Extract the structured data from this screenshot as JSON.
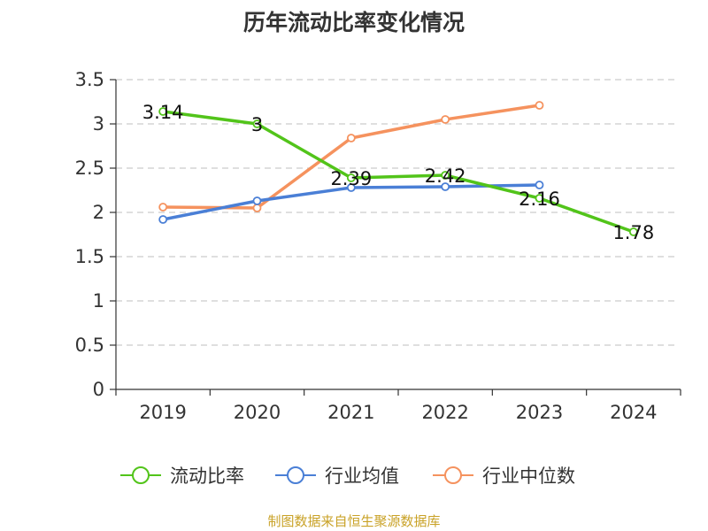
{
  "chart_data": {
    "type": "line",
    "title": "历年流动比率变化情况",
    "categories": [
      "2019",
      "2020",
      "2021",
      "2022",
      "2023",
      "2024"
    ],
    "ylim": [
      0,
      3.5
    ],
    "yticks": [
      0,
      0.5,
      1,
      1.5,
      2,
      2.5,
      3,
      3.5
    ],
    "ytick_labels": [
      "0",
      "0.5",
      "1",
      "1.5",
      "2",
      "2.5",
      "3",
      "3.5"
    ],
    "grid": true,
    "legend_position": "bottom",
    "series": [
      {
        "name": "流动比率",
        "color": "#52c41a",
        "values": [
          3.14,
          3.0,
          2.39,
          2.42,
          2.16,
          1.78
        ],
        "labels": [
          "3.14",
          "3",
          "2.39",
          "2.42",
          "2.16",
          "1.78"
        ]
      },
      {
        "name": "行业均值",
        "color": "#4a7fd6",
        "values": [
          1.92,
          2.13,
          2.28,
          2.29,
          2.31,
          null
        ]
      },
      {
        "name": "行业中位数",
        "color": "#f5925e",
        "values": [
          2.06,
          2.05,
          2.84,
          3.05,
          3.21,
          null
        ]
      }
    ]
  },
  "source_note": "制图数据来自恒生聚源数据库"
}
